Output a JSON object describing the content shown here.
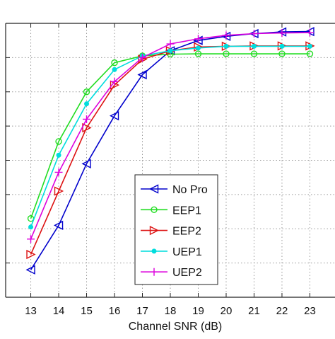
{
  "chart_data": {
    "type": "line",
    "title": "",
    "xlabel": "Channel SNR (dB)",
    "ylabel": "",
    "x": [
      13,
      14,
      15,
      16,
      17,
      18,
      19,
      20,
      21,
      22,
      23
    ],
    "xlim": [
      12.1,
      23.9
    ],
    "ylim": [
      0,
      8
    ],
    "y_ticks_labeled": false,
    "grid": true,
    "legend_position": "bottom-center",
    "series": [
      {
        "name": "No Pro",
        "color": "#0000cc",
        "marker": "triangle-left",
        "values": [
          0.8,
          2.1,
          3.9,
          5.3,
          6.5,
          7.2,
          7.5,
          7.62,
          7.7,
          7.75,
          7.76
        ]
      },
      {
        "name": "EEP1",
        "color": "#22dd22",
        "marker": "circle",
        "values": [
          2.3,
          4.55,
          6.0,
          6.85,
          7.05,
          7.1,
          7.11,
          7.11,
          7.11,
          7.11,
          7.11
        ]
      },
      {
        "name": "EEP2",
        "color": "#dd1111",
        "marker": "triangle-right",
        "values": [
          1.25,
          3.1,
          4.95,
          6.2,
          6.95,
          7.2,
          7.31,
          7.33,
          7.34,
          7.34,
          7.34
        ]
      },
      {
        "name": "UEP1",
        "color": "#00dddd",
        "marker": "dot",
        "values": [
          2.05,
          4.15,
          5.65,
          6.65,
          7.05,
          7.2,
          7.28,
          7.33,
          7.33,
          7.33,
          7.33
        ]
      },
      {
        "name": "UEP2",
        "color": "#dd00dd",
        "marker": "plus",
        "values": [
          1.7,
          3.65,
          5.2,
          6.3,
          7.0,
          7.4,
          7.55,
          7.65,
          7.7,
          7.72,
          7.73
        ]
      }
    ]
  }
}
